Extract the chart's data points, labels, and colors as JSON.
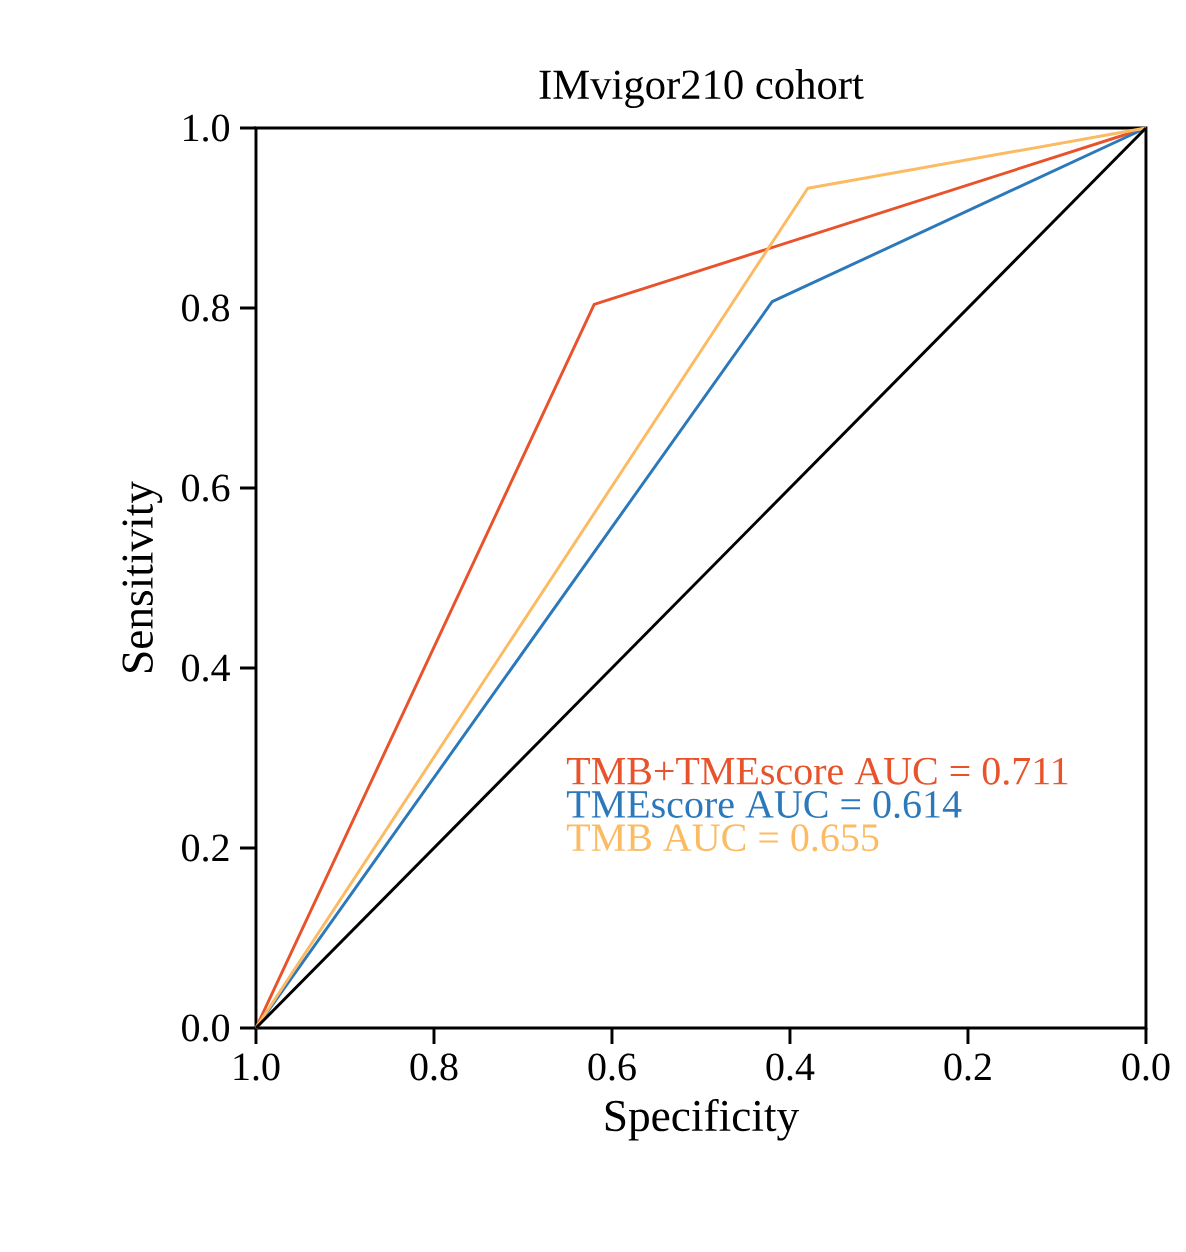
{
  "chart_data": {
    "type": "line",
    "title": "IMvigor210 cohort",
    "xlabel": "Specificity",
    "ylabel": "Sensitivity",
    "xlim": [
      1,
      0
    ],
    "ylim": [
      0,
      1
    ],
    "xticks": [
      {
        "value": 1,
        "label": "1.0"
      },
      {
        "value": 0.8,
        "label": "0.8"
      },
      {
        "value": 0.6,
        "label": "0.6"
      },
      {
        "value": 0.4,
        "label": "0.4"
      },
      {
        "value": 0.2,
        "label": "0.2"
      },
      {
        "value": 0,
        "label": "0.0"
      }
    ],
    "yticks": [
      {
        "value": 0,
        "label": "0.0"
      },
      {
        "value": 0.2,
        "label": "0.2"
      },
      {
        "value": 0.4,
        "label": "0.4"
      },
      {
        "value": 0.6,
        "label": "0.6"
      },
      {
        "value": 0.8,
        "label": "0.8"
      },
      {
        "value": 1,
        "label": "1.0"
      }
    ],
    "legend": "bottom right",
    "grid": false,
    "marker": "none",
    "line_style": "solid",
    "series": [
      {
        "name": "TMB+TMEscore AUC = 0.711",
        "color": "#e8532b",
        "x": [
          1,
          0.62,
          0
        ],
        "values": [
          0,
          0.804,
          1
        ]
      },
      {
        "name": "TMEscore AUC = 0.614",
        "color": "#2b78ba",
        "x": [
          1,
          0.42,
          0
        ],
        "values": [
          0,
          0.807,
          1
        ]
      },
      {
        "name": "TMB AUC = 0.655",
        "color": "#fcbb63",
        "x": [
          1,
          0.38,
          0
        ],
        "values": [
          0,
          0.933,
          1
        ]
      },
      {
        "color": "#000000",
        "x": [
          1,
          0
        ],
        "values": [
          0,
          1
        ]
      }
    ]
  }
}
